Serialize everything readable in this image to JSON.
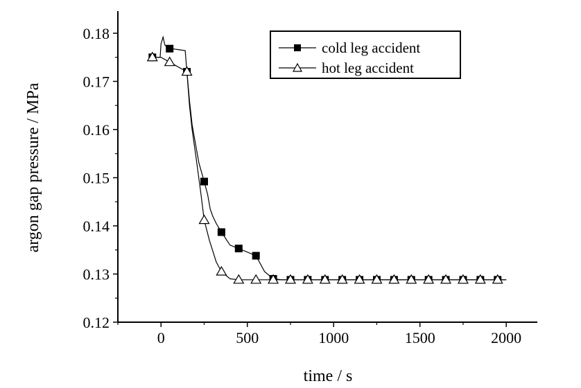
{
  "chart_data": {
    "type": "line",
    "title": "",
    "xlabel": "time / s",
    "ylabel": "argon gap pressure / MPa",
    "xlim": [
      -250,
      2180
    ],
    "ylim": [
      0.12,
      0.1846
    ],
    "xticks": [
      0,
      500,
      1000,
      1500,
      2000
    ],
    "xtick_labels": [
      "0",
      "500",
      "1000",
      "1500",
      "2000"
    ],
    "yticks": [
      0.12,
      0.13,
      0.14,
      0.15,
      0.16,
      0.17,
      0.18
    ],
    "ytick_labels": [
      "0.12",
      "0.13",
      "0.14",
      "0.15",
      "0.16",
      "0.17",
      "0.18"
    ],
    "grid": false,
    "legend_position": "top-right",
    "series": [
      {
        "name": "cold leg accident",
        "marker": "filled-square",
        "line": [
          [
            -50,
            0.175
          ],
          [
            -5,
            0.175
          ],
          [
            0,
            0.1778
          ],
          [
            12,
            0.1792
          ],
          [
            22,
            0.1776
          ],
          [
            40,
            0.1769
          ],
          [
            100,
            0.1766
          ],
          [
            140,
            0.1764
          ],
          [
            150,
            0.172
          ],
          [
            165,
            0.166
          ],
          [
            180,
            0.161
          ],
          [
            200,
            0.157
          ],
          [
            220,
            0.153
          ],
          [
            250,
            0.1492
          ],
          [
            270,
            0.1465
          ],
          [
            285,
            0.1435
          ],
          [
            300,
            0.142
          ],
          [
            320,
            0.1405
          ],
          [
            350,
            0.1387
          ],
          [
            400,
            0.136
          ],
          [
            450,
            0.1353
          ],
          [
            550,
            0.1338
          ],
          [
            600,
            0.1305
          ],
          [
            650,
            0.129
          ],
          [
            700,
            0.1288
          ],
          [
            2000,
            0.1288
          ]
        ],
        "x": [
          -50,
          50,
          150,
          250,
          350,
          450,
          550,
          650,
          750,
          850,
          950,
          1050,
          1150,
          1250,
          1350,
          1450,
          1550,
          1650,
          1750,
          1850,
          1950
        ],
        "y": [
          0.175,
          0.1768,
          0.172,
          0.1492,
          0.1387,
          0.1353,
          0.1338,
          0.129,
          0.1288,
          0.1288,
          0.1288,
          0.1288,
          0.1288,
          0.1288,
          0.1288,
          0.1288,
          0.1288,
          0.1288,
          0.1288,
          0.1288,
          0.1288
        ]
      },
      {
        "name": "hot leg accident",
        "marker": "open-triangle",
        "line": [
          [
            -50,
            0.175
          ],
          [
            0,
            0.175
          ],
          [
            50,
            0.174
          ],
          [
            150,
            0.172
          ],
          [
            165,
            0.165
          ],
          [
            180,
            0.16
          ],
          [
            200,
            0.155
          ],
          [
            230,
            0.147
          ],
          [
            250,
            0.1412
          ],
          [
            280,
            0.137
          ],
          [
            320,
            0.1325
          ],
          [
            350,
            0.1305
          ],
          [
            400,
            0.129
          ],
          [
            450,
            0.1288
          ],
          [
            2000,
            0.1288
          ]
        ],
        "x": [
          -50,
          50,
          150,
          250,
          350,
          450,
          550,
          650,
          750,
          850,
          950,
          1050,
          1150,
          1250,
          1350,
          1450,
          1550,
          1650,
          1750,
          1850,
          1950
        ],
        "y": [
          0.175,
          0.174,
          0.172,
          0.1412,
          0.1305,
          0.1288,
          0.1288,
          0.1288,
          0.1288,
          0.1288,
          0.1288,
          0.1288,
          0.1288,
          0.1288,
          0.1288,
          0.1288,
          0.1288,
          0.1288,
          0.1288,
          0.1288,
          0.1288
        ]
      }
    ]
  }
}
